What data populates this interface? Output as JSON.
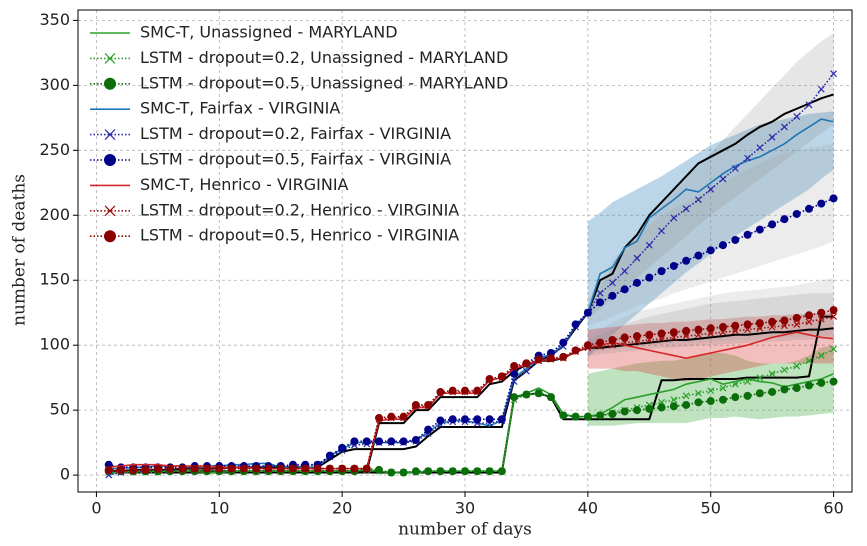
{
  "chart_data": {
    "type": "line",
    "xlabel": "number of days",
    "ylabel": "number of deaths",
    "xlim": [
      -1.5,
      61.5
    ],
    "ylim": [
      -13,
      358
    ],
    "xticks": [
      0,
      10,
      20,
      30,
      40,
      50,
      60
    ],
    "yticks": [
      0,
      50,
      100,
      150,
      200,
      250,
      300,
      350
    ],
    "grid": true,
    "legend": "upper left",
    "x": [
      1,
      2,
      3,
      4,
      5,
      6,
      7,
      8,
      9,
      10,
      11,
      12,
      13,
      14,
      15,
      16,
      17,
      18,
      19,
      20,
      21,
      22,
      23,
      24,
      25,
      26,
      27,
      28,
      29,
      30,
      31,
      32,
      33,
      34,
      35,
      36,
      37,
      38,
      39,
      40,
      41,
      42,
      43,
      44,
      45,
      46,
      47,
      48,
      49,
      50,
      51,
      52,
      53,
      54,
      55,
      56,
      57,
      58,
      59,
      60
    ],
    "band_x": [
      40,
      41,
      42,
      43,
      44,
      45,
      46,
      47,
      48,
      49,
      50,
      51,
      52,
      53,
      54,
      55,
      56,
      57,
      58,
      59,
      60
    ],
    "reference_lines": [
      {
        "color": "#000000",
        "values": [
          2,
          2,
          2,
          2,
          2,
          2,
          2,
          2,
          2,
          2,
          2,
          2,
          2,
          2,
          2,
          2,
          2,
          2,
          2,
          2,
          2,
          2,
          2,
          2,
          2,
          2,
          2,
          2,
          2,
          2,
          2,
          2,
          2,
          60,
          62,
          63,
          60,
          43,
          43,
          43,
          43,
          43,
          43,
          43,
          43,
          73,
          73,
          74,
          74,
          74,
          74,
          74,
          75,
          75,
          75,
          75,
          75,
          76,
          122,
          122
        ]
      },
      {
        "color": "#000000",
        "values": [
          3,
          3,
          4,
          4,
          4,
          4,
          5,
          5,
          5,
          5,
          6,
          6,
          6,
          6,
          6,
          6,
          6,
          6,
          12,
          18,
          20,
          20,
          20,
          20,
          20,
          22,
          30,
          37,
          37,
          37,
          37,
          37,
          37,
          73,
          80,
          88,
          92,
          100,
          113,
          125,
          150,
          155,
          175,
          185,
          200,
          210,
          220,
          230,
          240,
          245,
          250,
          255,
          262,
          268,
          272,
          278,
          282,
          286,
          290,
          293
        ]
      },
      {
        "color": "#000000",
        "values": [
          3,
          3,
          3,
          3,
          3,
          3,
          3,
          3,
          3,
          3,
          3,
          3,
          3,
          3,
          3,
          3,
          3,
          3,
          3,
          3,
          3,
          3,
          40,
          40,
          40,
          50,
          50,
          60,
          60,
          60,
          60,
          70,
          72,
          80,
          85,
          88,
          88,
          90,
          95,
          98,
          98,
          99,
          100,
          101,
          102,
          103,
          104,
          104,
          105,
          106,
          107,
          108,
          108,
          109,
          110,
          110,
          111,
          112,
          112,
          113
        ]
      }
    ],
    "series": [
      {
        "name": "SMC-T, Unassigned - MARYLAND",
        "color": "#2ca02c",
        "linestyle": "solid",
        "marker": "none",
        "band_color": "#2ca02c",
        "values": [
          2,
          2,
          3,
          3,
          3,
          3,
          3,
          3,
          2,
          2,
          3,
          3,
          3,
          3,
          3,
          3,
          3,
          3,
          3,
          3,
          3,
          4,
          3,
          2,
          2,
          2,
          3,
          3,
          3,
          3,
          3,
          3,
          3,
          60,
          63,
          67,
          62,
          47,
          45,
          45,
          47,
          52,
          58,
          60,
          62,
          64,
          66,
          70,
          72,
          74,
          70,
          72,
          74,
          72,
          71,
          68,
          70,
          72,
          74,
          78
        ],
        "band_lower": [
          38,
          38,
          38,
          39,
          40,
          40,
          40,
          40,
          40,
          42,
          44,
          44,
          45,
          44,
          43,
          44,
          45,
          45,
          46,
          47,
          48
        ],
        "band_upper": [
          78,
          80,
          82,
          84,
          86,
          87,
          88,
          88,
          90,
          92,
          94,
          94,
          92,
          88,
          86,
          86,
          86,
          88,
          92,
          98,
          100
        ]
      },
      {
        "name": "LSTM - dropout=0.2, Unassigned - MARYLAND",
        "color": "#2ca02c",
        "linestyle": "dotted",
        "marker": "x",
        "values": [
          2,
          2,
          2,
          2,
          2,
          3,
          3,
          3,
          3,
          3,
          3,
          3,
          3,
          3,
          3,
          3,
          3,
          3,
          3,
          3,
          3,
          4,
          3,
          2,
          2,
          2,
          3,
          3,
          3,
          3,
          3,
          3,
          3,
          58,
          62,
          63,
          60,
          46,
          45,
          45,
          46,
          48,
          50,
          52,
          54,
          56,
          58,
          61,
          63,
          65,
          67,
          70,
          72,
          75,
          78,
          81,
          84,
          88,
          92,
          97
        ]
      },
      {
        "name": "LSTM - dropout=0.5, Unassigned - MARYLAND",
        "color": "#0b6e0b",
        "linestyle": "dotted",
        "marker": "o",
        "values": [
          3,
          3,
          3,
          3,
          3,
          3,
          3,
          3,
          3,
          3,
          3,
          3,
          3,
          3,
          3,
          3,
          3,
          3,
          3,
          3,
          3,
          5,
          4,
          2,
          2,
          3,
          3,
          3,
          3,
          3,
          3,
          3,
          3,
          60,
          62,
          63,
          60,
          46,
          45,
          45,
          46,
          47,
          49,
          50,
          51,
          52,
          53,
          54,
          56,
          57,
          58,
          60,
          61,
          63,
          64,
          66,
          67,
          69,
          71,
          72
        ]
      },
      {
        "name": "SMC-T, Fairfax - VIRGINIA",
        "color": "#1f77b4",
        "linestyle": "solid",
        "marker": "none",
        "band_color": "#1f77b4",
        "values": [
          5,
          5,
          6,
          6,
          7,
          7,
          7,
          6,
          7,
          7,
          8,
          8,
          9,
          9,
          6,
          5,
          6,
          6,
          15,
          20,
          25,
          25,
          25,
          25,
          25,
          27,
          33,
          40,
          42,
          42,
          40,
          38,
          42,
          75,
          82,
          90,
          93,
          100,
          115,
          125,
          155,
          160,
          175,
          180,
          198,
          205,
          212,
          220,
          218,
          225,
          232,
          238,
          242,
          245,
          250,
          255,
          262,
          268,
          274,
          272
        ],
        "band_lower": [
          90,
          100,
          108,
          116,
          124,
          132,
          140,
          148,
          156,
          163,
          170,
          177,
          184,
          190,
          196,
          202,
          208,
          214,
          220,
          228,
          235
        ],
        "band_upper": [
          195,
          202,
          210,
          215,
          220,
          225,
          230,
          236,
          242,
          248,
          254,
          258,
          262,
          266,
          270,
          272,
          274,
          276,
          278,
          279,
          280
        ]
      },
      {
        "name": "LSTM - dropout=0.2, Fairfax - VIRGINIA",
        "color": "#2a2aa8",
        "linestyle": "dotted",
        "marker": "x",
        "band_color": "#808080",
        "values": [
          0,
          2,
          3,
          3,
          4,
          4,
          5,
          5,
          5,
          6,
          6,
          6,
          6,
          6,
          7,
          7,
          7,
          8,
          14,
          19,
          23,
          24,
          25,
          25,
          25,
          26,
          32,
          39,
          41,
          41,
          40,
          40,
          42,
          72,
          80,
          88,
          92,
          99,
          114,
          125,
          140,
          148,
          157,
          167,
          177,
          188,
          198,
          205,
          212,
          220,
          228,
          236,
          244,
          252,
          260,
          268,
          276,
          285,
          297,
          309
        ],
        "band_lower": [
          120,
          128,
          136,
          144,
          152,
          160,
          168,
          176,
          184,
          192,
          200,
          207,
          214,
          221,
          228,
          235,
          242,
          249,
          256,
          263,
          270
        ],
        "band_upper": [
          130,
          145,
          160,
          172,
          184,
          196,
          208,
          218,
          228,
          238,
          248,
          258,
          268,
          278,
          288,
          298,
          308,
          318,
          326,
          334,
          340
        ]
      },
      {
        "name": "LSTM - dropout=0.5, Fairfax - VIRGINIA",
        "color": "#00008b",
        "linestyle": "dotted",
        "marker": "o",
        "band_color": "#a0a0a0",
        "values": [
          8,
          6,
          6,
          6,
          6,
          6,
          6,
          7,
          7,
          7,
          7,
          7,
          7,
          7,
          7,
          8,
          8,
          8,
          15,
          21,
          26,
          26,
          26,
          26,
          26,
          27,
          35,
          42,
          43,
          43,
          43,
          43,
          43,
          78,
          86,
          92,
          94,
          102,
          116,
          125,
          133,
          138,
          143,
          148,
          152,
          157,
          161,
          165,
          169,
          173,
          177,
          181,
          185,
          189,
          193,
          197,
          201,
          205,
          209,
          213
        ],
        "band_lower": [
          115,
          118,
          122,
          126,
          130,
          133,
          136,
          140,
          143,
          146,
          149,
          152,
          155,
          158,
          161,
          164,
          167,
          170,
          173,
          176,
          180
        ],
        "band_upper": [
          135,
          150,
          165,
          175,
          185,
          192,
          200,
          205,
          210,
          215,
          220,
          225,
          230,
          235,
          240,
          244,
          248,
          250,
          252,
          253,
          255
        ]
      },
      {
        "name": "SMC-T, Henrico - VIRGINIA",
        "color": "#d62728",
        "linestyle": "solid",
        "marker": "none",
        "band_color": "#d62728",
        "values": [
          6,
          7,
          8,
          8,
          8,
          7,
          7,
          7,
          7,
          6,
          6,
          6,
          5,
          5,
          5,
          5,
          5,
          5,
          5,
          5,
          5,
          5,
          42,
          43,
          43,
          52,
          52,
          63,
          63,
          63,
          63,
          73,
          75,
          82,
          85,
          88,
          89,
          90,
          95,
          98,
          100,
          102,
          100,
          98,
          96,
          94,
          92,
          90,
          92,
          94,
          96,
          98,
          100,
          103,
          106,
          108,
          110,
          108,
          106,
          105
        ],
        "band_lower": [
          82,
          82,
          82,
          80,
          80,
          78,
          76,
          74,
          72,
          74,
          76,
          78,
          80,
          82,
          84,
          86,
          86,
          86,
          86,
          86,
          86
        ],
        "band_upper": [
          112,
          113,
          114,
          115,
          116,
          117,
          117,
          118,
          118,
          119,
          120,
          120,
          121,
          122,
          122,
          123,
          123,
          124,
          124,
          125,
          125
        ]
      },
      {
        "name": "LSTM - dropout=0.2, Henrico - VIRGINIA",
        "color": "#a01010",
        "linestyle": "dotted",
        "marker": "x",
        "band_color": "#808080",
        "values": [
          3,
          3,
          3,
          4,
          4,
          4,
          4,
          5,
          5,
          5,
          5,
          5,
          5,
          5,
          5,
          5,
          5,
          5,
          5,
          5,
          5,
          5,
          43,
          44,
          44,
          53,
          53,
          63,
          64,
          64,
          64,
          73,
          75,
          83,
          85,
          88,
          89,
          90,
          95,
          98,
          99,
          100,
          102,
          103,
          104,
          105,
          106,
          107,
          108,
          109,
          110,
          111,
          112,
          113,
          114,
          115,
          116,
          118,
          120,
          122
        ],
        "band_lower": [
          92,
          93,
          94,
          95,
          96,
          97,
          98,
          98,
          99,
          100,
          100,
          101,
          101,
          102,
          102,
          103,
          103,
          104,
          104,
          105,
          105
        ],
        "band_upper": [
          104,
          108,
          112,
          116,
          119,
          122,
          124,
          126,
          128,
          130,
          132,
          133,
          134,
          135,
          136,
          137,
          138,
          139,
          140,
          140,
          140
        ]
      },
      {
        "name": "LSTM - dropout=0.5, Henrico - VIRGINIA",
        "color": "#8b0000",
        "linestyle": "dotted",
        "marker": "o",
        "band_color": "#a0a0a0",
        "values": [
          4,
          4,
          4,
          4,
          5,
          5,
          5,
          5,
          5,
          5,
          5,
          5,
          5,
          5,
          5,
          5,
          5,
          5,
          5,
          5,
          5,
          5,
          44,
          45,
          45,
          54,
          54,
          64,
          65,
          65,
          65,
          74,
          76,
          84,
          86,
          89,
          90,
          91,
          96,
          100,
          102,
          104,
          106,
          107,
          108,
          109,
          110,
          111,
          112,
          113,
          114,
          115,
          116,
          117,
          118,
          119,
          121,
          123,
          125,
          127
        ],
        "band_lower": [
          95,
          96,
          97,
          98,
          99,
          100,
          101,
          101,
          102,
          102,
          103,
          103,
          104,
          104,
          105,
          105,
          106,
          106,
          107,
          107,
          108
        ],
        "band_upper": [
          106,
          112,
          118,
          122,
          126,
          128,
          130,
          132,
          134,
          136,
          138,
          140,
          141,
          142,
          143,
          144,
          145,
          146,
          148,
          150,
          152
        ]
      }
    ]
  }
}
